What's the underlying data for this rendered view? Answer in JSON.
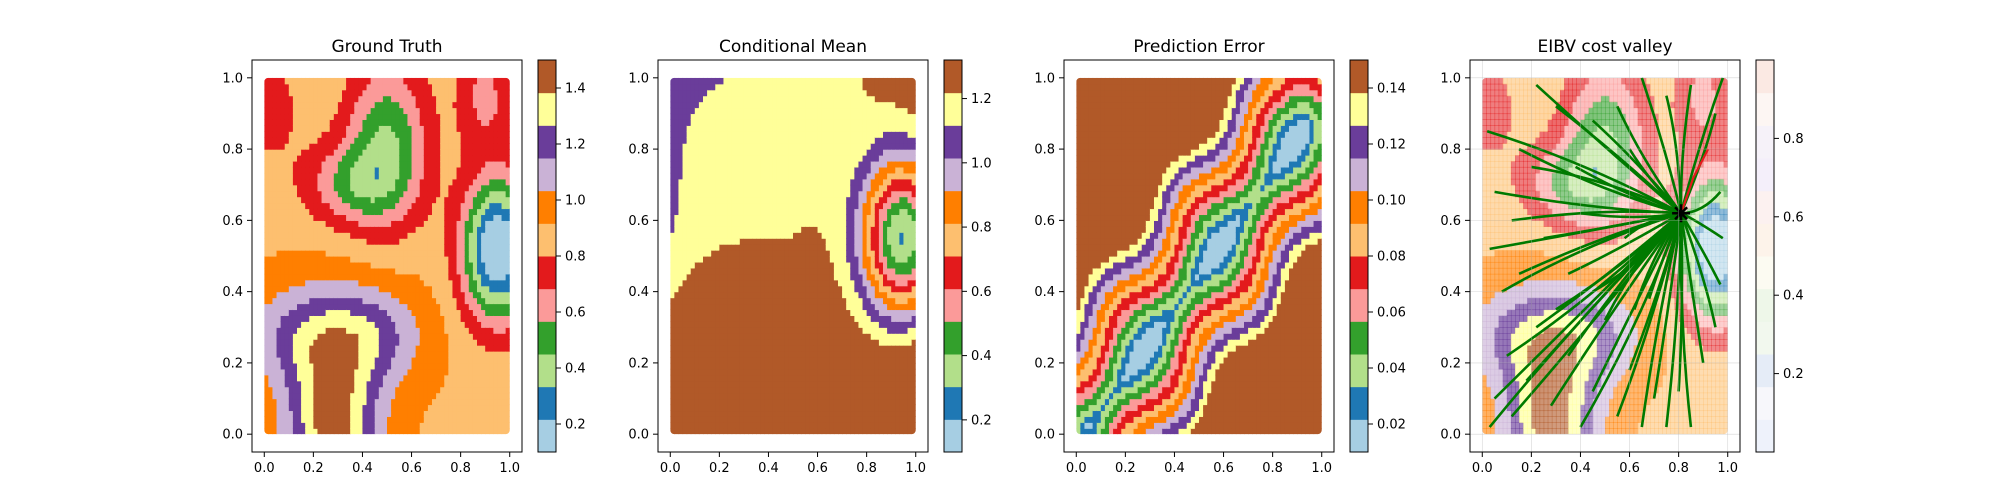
{
  "chart_data": [
    {
      "type": "heatmap",
      "title": "Ground Truth",
      "xlabel": "",
      "ylabel": "",
      "xlim": [
        0,
        1
      ],
      "ylim": [
        0,
        1
      ],
      "x_ticks": [
        "0.0",
        "0.2",
        "0.4",
        "0.6",
        "0.8",
        "1.0"
      ],
      "y_ticks": [
        "0.0",
        "0.2",
        "0.4",
        "0.6",
        "0.8",
        "1.0"
      ],
      "colorbar": {
        "range": [
          0.1,
          1.5
        ],
        "ticks": [
          0.2,
          0.4,
          0.6,
          0.8,
          1.0,
          1.2,
          1.4
        ],
        "tick_labels": [
          "0.2",
          "0.4",
          "0.6",
          "0.8",
          "1.0",
          "1.2",
          "1.4"
        ]
      },
      "field": {
        "base": 0.9,
        "blobs": [
          {
            "cx": 0.28,
            "cy": 0.02,
            "rx": 0.13,
            "ry": 0.18,
            "amp": 0.55
          },
          {
            "cx": 0.42,
            "cy": 0.28,
            "rx": 0.16,
            "ry": 0.1,
            "amp": 0.3
          },
          {
            "cx": 0.12,
            "cy": 0.28,
            "rx": 0.14,
            "ry": 0.1,
            "amp": 0.22
          },
          {
            "cx": 0.95,
            "cy": 0.52,
            "rx": 0.1,
            "ry": 0.14,
            "amp": -0.85
          },
          {
            "cx": 0.5,
            "cy": 0.82,
            "rx": 0.12,
            "ry": 0.16,
            "amp": -0.45
          },
          {
            "cx": 0.35,
            "cy": 0.7,
            "rx": 0.14,
            "ry": 0.08,
            "amp": -0.3
          },
          {
            "cx": 0.02,
            "cy": 0.92,
            "rx": 0.1,
            "ry": 0.12,
            "amp": -0.15
          },
          {
            "cx": 0.9,
            "cy": 0.95,
            "rx": 0.08,
            "ry": 0.1,
            "amp": -0.25
          }
        ]
      }
    },
    {
      "type": "heatmap",
      "title": "Conditional Mean",
      "xlabel": "",
      "ylabel": "",
      "xlim": [
        0,
        1
      ],
      "ylim": [
        0,
        1
      ],
      "x_ticks": [
        "0.0",
        "0.2",
        "0.4",
        "0.6",
        "0.8",
        "1.0"
      ],
      "y_ticks": [
        "0.0",
        "0.2",
        "0.4",
        "0.6",
        "0.8",
        "1.0"
      ],
      "colorbar": {
        "range": [
          0.1,
          1.32
        ],
        "ticks": [
          0.2,
          0.4,
          0.6,
          0.8,
          1.0,
          1.2
        ],
        "tick_labels": [
          "0.2",
          "0.4",
          "0.6",
          "0.8",
          "1.0",
          "1.2"
        ]
      },
      "field": {
        "base": 1.1,
        "linear": {
          "x": 0.35,
          "y": -0.15,
          "c": 0.0
        },
        "blobs": [
          {
            "cx": 0.95,
            "cy": 0.55,
            "rx": 0.12,
            "ry": 0.16,
            "amp": -1.05
          },
          {
            "cx": 0.18,
            "cy": 0.1,
            "rx": 0.2,
            "ry": 0.22,
            "amp": 0.5
          },
          {
            "cx": 0.1,
            "cy": 0.85,
            "rx": 0.22,
            "ry": 0.26,
            "amp": 0.12
          }
        ]
      }
    },
    {
      "type": "heatmap",
      "title": "Prediction Error",
      "xlabel": "",
      "ylabel": "",
      "xlim": [
        0,
        1
      ],
      "ylim": [
        0,
        1
      ],
      "x_ticks": [
        "0.0",
        "0.2",
        "0.4",
        "0.6",
        "0.8",
        "1.0"
      ],
      "y_ticks": [
        "0.0",
        "0.2",
        "0.4",
        "0.6",
        "0.8",
        "1.0"
      ],
      "colorbar": {
        "range": [
          0.01,
          0.15
        ],
        "ticks": [
          0.02,
          0.04,
          0.06,
          0.08,
          0.1,
          0.12,
          0.14
        ],
        "tick_labels": [
          "0.02",
          "0.04",
          "0.06",
          "0.08",
          "0.10",
          "0.12",
          "0.14"
        ]
      },
      "field": {
        "type": "band",
        "p0": [
          0.05,
          0.02
        ],
        "p1": [
          0.92,
          0.85
        ],
        "min": 0.015,
        "max": 0.15,
        "width": 0.3,
        "wiggle": 0.03
      }
    },
    {
      "type": "heatmap",
      "title": "EIBV cost valley",
      "xlabel": "",
      "ylabel": "",
      "xlim": [
        0,
        1
      ],
      "ylim": [
        0,
        1
      ],
      "x_ticks": [
        "0.0",
        "0.2",
        "0.4",
        "0.6",
        "0.8",
        "1.0"
      ],
      "y_ticks": [
        "0.0",
        "0.2",
        "0.4",
        "0.6",
        "0.8",
        "1.0"
      ],
      "colorbar": {
        "range": [
          0.0,
          1.0
        ],
        "ticks": [
          0.2,
          0.4,
          0.6,
          0.8
        ],
        "tick_labels": [
          "0.2",
          "0.4",
          "0.6",
          "0.8"
        ]
      },
      "agent": {
        "x": 0.81,
        "y": 0.62
      },
      "selected_path": [
        [
          0.81,
          0.62
        ],
        [
          0.86,
          0.72
        ],
        [
          0.92,
          0.8
        ]
      ],
      "tree_endpoints": [
        [
          0.02,
          0.85
        ],
        [
          0.05,
          0.68
        ],
        [
          0.03,
          0.52
        ],
        [
          0.08,
          0.4
        ],
        [
          0.1,
          0.22
        ],
        [
          0.05,
          0.1
        ],
        [
          0.03,
          0.02
        ],
        [
          0.12,
          0.05
        ],
        [
          0.18,
          0.15
        ],
        [
          0.22,
          0.3
        ],
        [
          0.28,
          0.08
        ],
        [
          0.35,
          0.22
        ],
        [
          0.4,
          0.02
        ],
        [
          0.45,
          0.12
        ],
        [
          0.5,
          0.32
        ],
        [
          0.55,
          0.05
        ],
        [
          0.6,
          0.18
        ],
        [
          0.65,
          0.02
        ],
        [
          0.68,
          0.38
        ],
        [
          0.75,
          0.02
        ],
        [
          0.8,
          0.12
        ],
        [
          0.85,
          0.02
        ],
        [
          0.9,
          0.2
        ],
        [
          0.95,
          0.3
        ],
        [
          0.97,
          0.42
        ],
        [
          0.98,
          0.55
        ],
        [
          0.97,
          0.68
        ],
        [
          0.95,
          0.9
        ],
        [
          0.98,
          1.0
        ],
        [
          0.85,
          0.98
        ],
        [
          0.75,
          0.95
        ],
        [
          0.65,
          1.0
        ],
        [
          0.55,
          0.92
        ],
        [
          0.45,
          0.88
        ],
        [
          0.38,
          0.75
        ],
        [
          0.3,
          0.92
        ],
        [
          0.22,
          0.98
        ],
        [
          0.15,
          0.8
        ],
        [
          0.12,
          0.6
        ],
        [
          0.25,
          0.55
        ],
        [
          0.35,
          0.45
        ],
        [
          0.2,
          0.75
        ],
        [
          0.4,
          0.62
        ],
        [
          0.6,
          0.8
        ],
        [
          0.58,
          0.55
        ],
        [
          0.45,
          0.4
        ],
        [
          0.7,
          0.1
        ],
        [
          0.62,
          0.35
        ],
        [
          0.3,
          0.35
        ],
        [
          0.15,
          0.45
        ]
      ]
    }
  ]
}
